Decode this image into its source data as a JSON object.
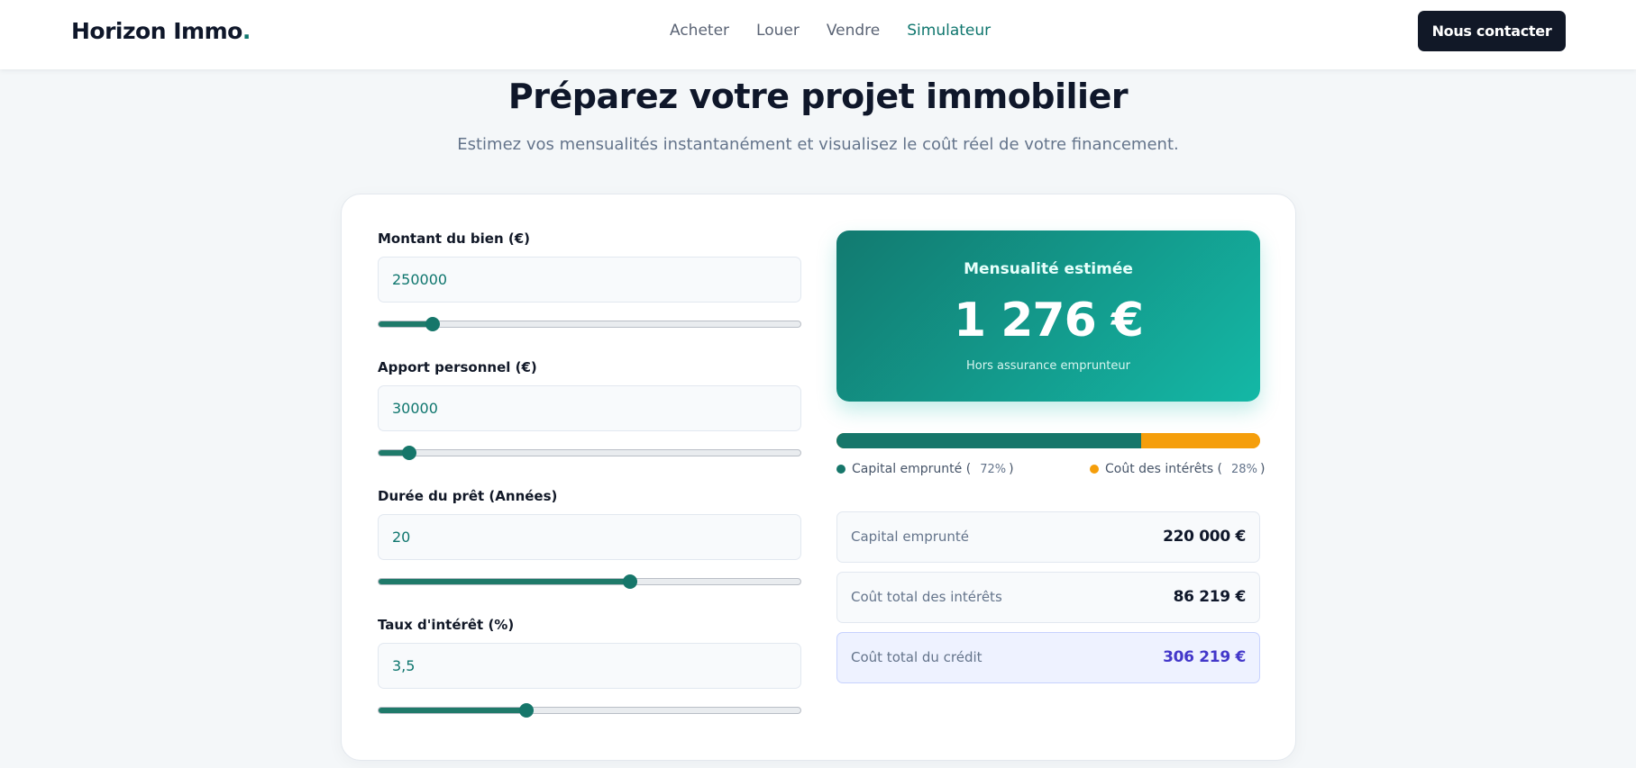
{
  "brand": {
    "name": "Horizon Immo",
    "dot": "."
  },
  "nav": {
    "items": [
      {
        "label": "Acheter",
        "active": false
      },
      {
        "label": "Louer",
        "active": false
      },
      {
        "label": "Vendre",
        "active": false
      },
      {
        "label": "Simulateur",
        "active": true
      }
    ],
    "cta_label": "Nous contacter"
  },
  "hero": {
    "title": "Préparez votre projet immobilier",
    "subtitle": "Estimez vos mensualités instantanément et visualisez le coût réel de votre financement."
  },
  "form": {
    "fields": [
      {
        "label": "Montant du bien (€)",
        "value": "250000",
        "slider_fraction": 0.13
      },
      {
        "label": "Apport personnel (€)",
        "value": "30000",
        "slider_fraction": 0.075
      },
      {
        "label": "Durée du prêt (Années)",
        "value": "20",
        "slider_fraction": 0.595
      },
      {
        "label": "Taux d'intérêt (%)",
        "value": "3,5",
        "slider_fraction": 0.35
      }
    ]
  },
  "result": {
    "label": "Mensualité estimée",
    "value": "1 276 €",
    "note": "Hors assurance emprunteur"
  },
  "split": {
    "capital_fraction": 0.72,
    "legend": [
      {
        "label": "Capital emprunté (",
        "pct": "72%",
        "close": ")",
        "color": "#16766a"
      },
      {
        "label": "Coût des intérêts (",
        "pct": "28%",
        "close": ")",
        "color": "#f59e0b"
      }
    ]
  },
  "stats": [
    {
      "label": "Capital emprunté",
      "value": "220 000 €"
    },
    {
      "label": "Coût total des intérêts",
      "value": "86 219 €"
    },
    {
      "label": "Coût total du crédit",
      "value": "306 219 €"
    }
  ],
  "colors": {
    "accent": "#0f766e",
    "dark": "#111827",
    "orange": "#f59e0b",
    "indigo": "#4338ca"
  }
}
